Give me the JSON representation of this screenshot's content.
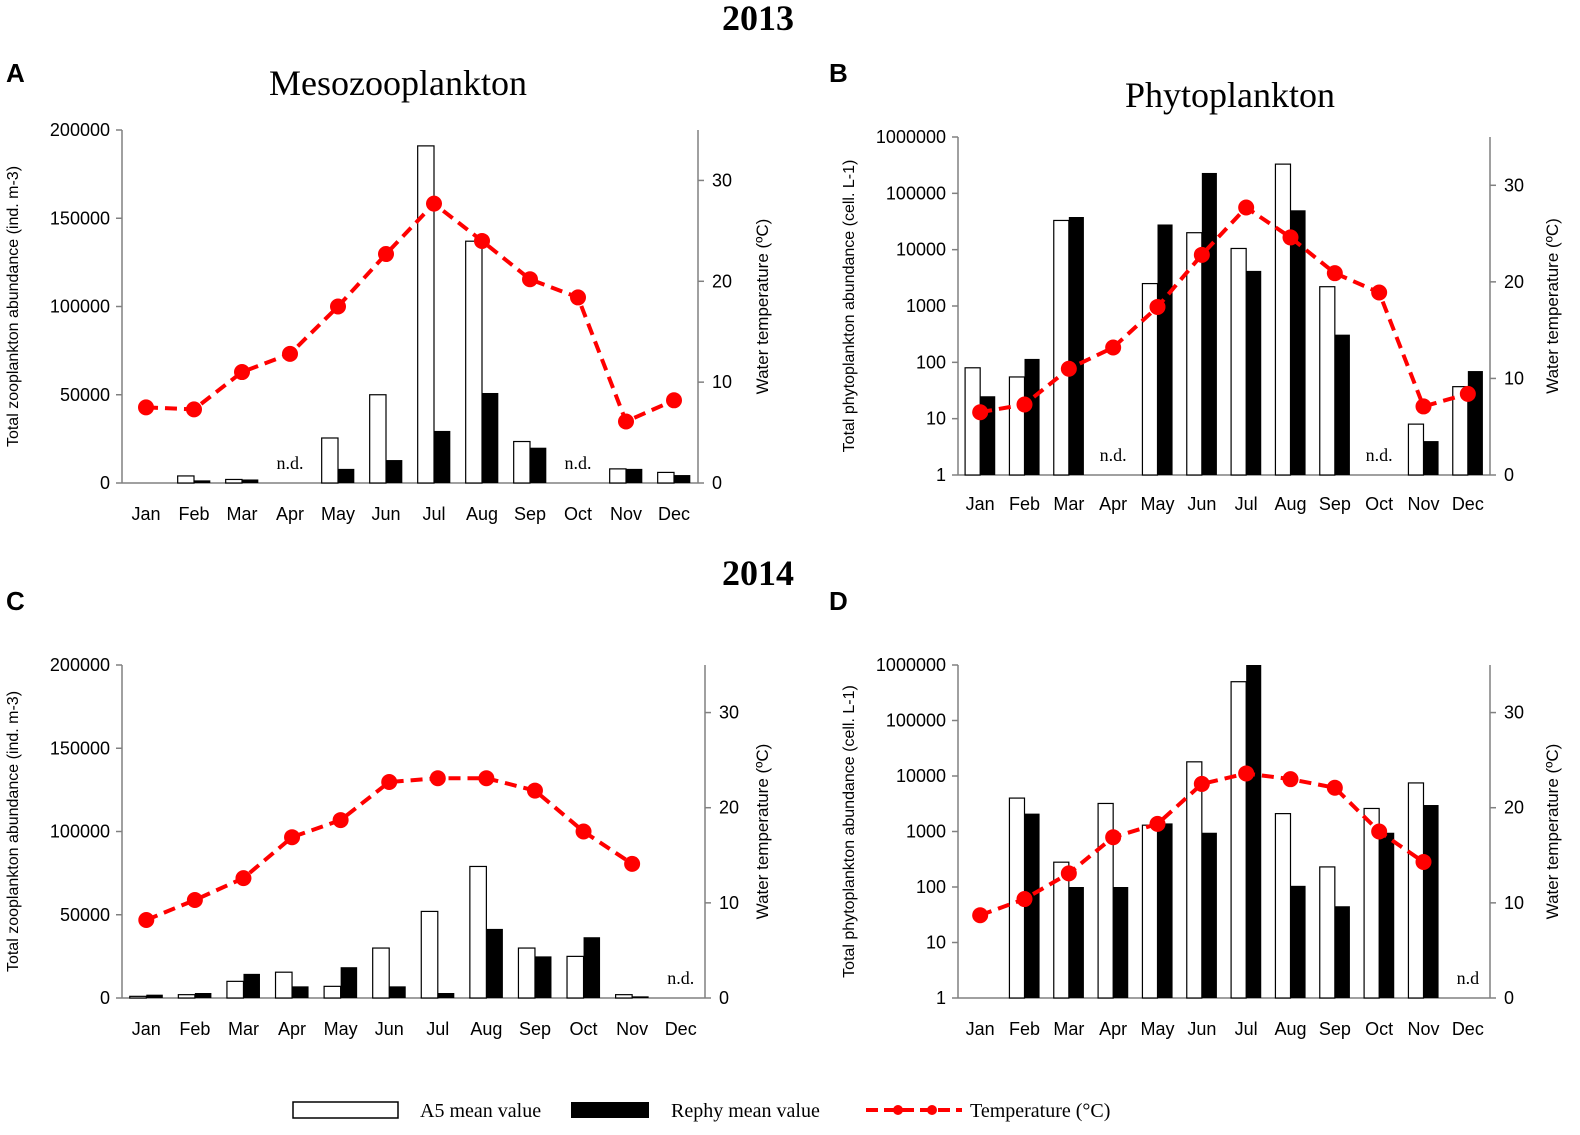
{
  "year_labels": [
    "2013",
    "2014"
  ],
  "panel_letters": [
    "A",
    "B",
    "C",
    "D"
  ],
  "nd_label": "n.d.",
  "nd_label_short": "n.d",
  "legend": {
    "a5": "A5 mean value",
    "rephy": "Rephy mean value",
    "temp": "Temperature (°C)"
  },
  "colors": {
    "temperature": "#ff0000",
    "rephy": "#000000",
    "a5": "#ffffff",
    "axis": "#808080"
  },
  "chart_data": [
    {
      "panel": "A",
      "type": "bar",
      "scale": "linear",
      "title": "Mesozooplankton",
      "ylabel": "Total zooplankton abundance (ind. m-3)",
      "y2label": "Water temperature  (ºC)",
      "ylim": [
        0,
        200000
      ],
      "yticks": [
        0,
        50000,
        100000,
        150000,
        200000
      ],
      "y2lim": [
        0,
        35
      ],
      "y2ticks": [
        0,
        10,
        20,
        30
      ],
      "categories": [
        "Jan",
        "Feb",
        "Mar",
        "Apr",
        "May",
        "Jun",
        "Jul",
        "Aug",
        "Sep",
        "Oct",
        "Nov",
        "Dec"
      ],
      "series": [
        {
          "name": "A5 mean value",
          "values": [
            0,
            4000,
            2000,
            null,
            25500,
            50000,
            191000,
            137000,
            23500,
            null,
            8000,
            6000
          ]
        },
        {
          "name": "Rephy mean value",
          "values": [
            0,
            1500,
            2000,
            null,
            8000,
            13000,
            29500,
            51000,
            20000,
            null,
            8000,
            4500
          ]
        },
        {
          "name": "Temperature (°C)",
          "values": [
            7.5,
            7.3,
            11,
            12.8,
            17.5,
            22.7,
            27.7,
            24,
            20.2,
            18.4,
            6.1,
            8.2
          ]
        }
      ],
      "nd": [
        {
          "category": "Apr",
          "label": "n.d."
        },
        {
          "category": "Oct",
          "label": "n.d."
        }
      ]
    },
    {
      "panel": "B",
      "type": "bar",
      "scale": "log",
      "title": "Phytoplankton",
      "ylabel": "Total phytoplankton abundance (cell. L-1)",
      "y2label": "Water temperature (ºC)",
      "ylim": [
        1,
        1000000
      ],
      "yticks": [
        1,
        10,
        100,
        1000,
        10000,
        100000,
        1000000
      ],
      "y2lim": [
        0,
        35
      ],
      "y2ticks": [
        0,
        10,
        20,
        30
      ],
      "categories": [
        "Jan",
        "Feb",
        "Mar",
        "Apr",
        "May",
        "Jun",
        "Jul",
        "Aug",
        "Sep",
        "Oct",
        "Nov",
        "Dec"
      ],
      "series": [
        {
          "name": "A5 mean value",
          "values": [
            80,
            55,
            33000,
            null,
            2500,
            20000,
            10500,
            330000,
            2200,
            null,
            8,
            37
          ]
        },
        {
          "name": "Rephy mean value",
          "values": [
            25,
            115,
            38000,
            null,
            28000,
            230000,
            4200,
            50000,
            310,
            null,
            4,
            70
          ]
        },
        {
          "name": "Temperature (°C)",
          "values": [
            6.5,
            7.3,
            11,
            13.2,
            17.4,
            22.8,
            27.7,
            24.6,
            20.9,
            18.9,
            7.1,
            8.4
          ]
        }
      ],
      "nd": [
        {
          "category": "Apr",
          "label": "n.d."
        },
        {
          "category": "Oct",
          "label": "n.d."
        }
      ]
    },
    {
      "panel": "C",
      "type": "bar",
      "scale": "linear",
      "title": "",
      "ylabel": "Total zooplankton abundance (ind. m-3)",
      "y2label": "Water temperature  (ºC)",
      "ylim": [
        0,
        200000
      ],
      "yticks": [
        0,
        50000,
        100000,
        150000,
        200000
      ],
      "y2lim": [
        0,
        35
      ],
      "y2ticks": [
        0,
        10,
        20,
        30
      ],
      "categories": [
        "Jan",
        "Feb",
        "Mar",
        "Apr",
        "May",
        "Jun",
        "Jul",
        "Aug",
        "Sep",
        "Oct",
        "Nov",
        "Dec"
      ],
      "series": [
        {
          "name": "A5 mean value",
          "values": [
            1000,
            2000,
            10000,
            15500,
            7000,
            30000,
            52000,
            79000,
            30000,
            25000,
            2000,
            null
          ]
        },
        {
          "name": "Rephy mean value",
          "values": [
            2000,
            3000,
            14500,
            7000,
            18500,
            7000,
            3000,
            41500,
            25000,
            36500,
            1000,
            null
          ]
        },
        {
          "name": "Temperature (°C)",
          "values": [
            8.2,
            10.3,
            12.6,
            16.9,
            18.7,
            22.7,
            23.1,
            23.1,
            21.8,
            17.5,
            14.1,
            null
          ]
        }
      ],
      "nd": [
        {
          "category": "Dec",
          "label": "n.d."
        }
      ]
    },
    {
      "panel": "D",
      "type": "bar",
      "scale": "log",
      "title": "",
      "ylabel": "Total phytoplankton abundance (cell. L-1)",
      "y2label": "Water temperature (ºC)",
      "ylim": [
        1,
        1000000
      ],
      "yticks": [
        1,
        10,
        100,
        1000,
        10000,
        100000,
        1000000
      ],
      "y2lim": [
        0,
        35
      ],
      "y2ticks": [
        0,
        10,
        20,
        30
      ],
      "categories": [
        "Jan",
        "Feb",
        "Mar",
        "Apr",
        "May",
        "Jun",
        "Jul",
        "Aug",
        "Sep",
        "Oct",
        "Nov",
        "Dec"
      ],
      "series": [
        {
          "name": "A5 mean value",
          "values": [
            null,
            4000,
            280,
            3200,
            1300,
            18000,
            500000,
            2100,
            230,
            2600,
            7500,
            null
          ]
        },
        {
          "name": "Rephy mean value",
          "values": [
            null,
            2100,
            100,
            100,
            1400,
            950,
            1000000,
            105,
            45,
            950,
            3000,
            null
          ]
        },
        {
          "name": "Temperature (°C)",
          "values": [
            8.7,
            10.4,
            13.1,
            16.9,
            18.3,
            22.5,
            23.6,
            23,
            22.1,
            17.5,
            14.3,
            null
          ]
        }
      ],
      "nd": [
        {
          "category": "Dec",
          "label": "n.d"
        }
      ]
    }
  ]
}
